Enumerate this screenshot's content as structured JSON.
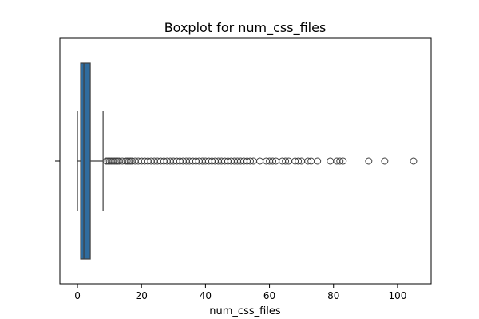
{
  "chart_data": {
    "type": "boxplot",
    "title": "Boxplot for num_css_files",
    "xlabel": "num_css_files",
    "ylabel": "",
    "orientation": "horizontal",
    "xlim": [
      -5.5,
      110.5
    ],
    "xticks": [
      0,
      20,
      40,
      60,
      80,
      100
    ],
    "grid": false,
    "legend": "none",
    "box_color": "#2f6c9f",
    "line_color": "#3f3f3f",
    "stats": {
      "whisker_low": 0,
      "q1": 1,
      "median": 2,
      "q3": 4,
      "whisker_high": 8
    },
    "outliers": [
      9,
      9.5,
      10,
      10.5,
      11,
      11.5,
      12,
      12.5,
      13,
      14,
      15,
      15.5,
      16,
      16.5,
      17,
      18,
      19,
      20,
      21,
      22,
      23,
      24,
      25,
      26,
      27,
      28,
      29,
      30,
      31,
      32,
      33,
      34,
      35,
      36,
      37,
      38,
      39,
      40,
      41,
      42,
      43,
      44,
      45,
      46,
      47,
      48,
      49,
      50,
      51,
      52,
      53,
      54,
      55,
      57,
      59,
      60,
      61,
      62,
      64,
      65,
      66,
      68,
      69,
      70,
      72,
      73,
      75,
      79,
      81,
      82,
      83,
      91,
      96,
      105
    ]
  }
}
